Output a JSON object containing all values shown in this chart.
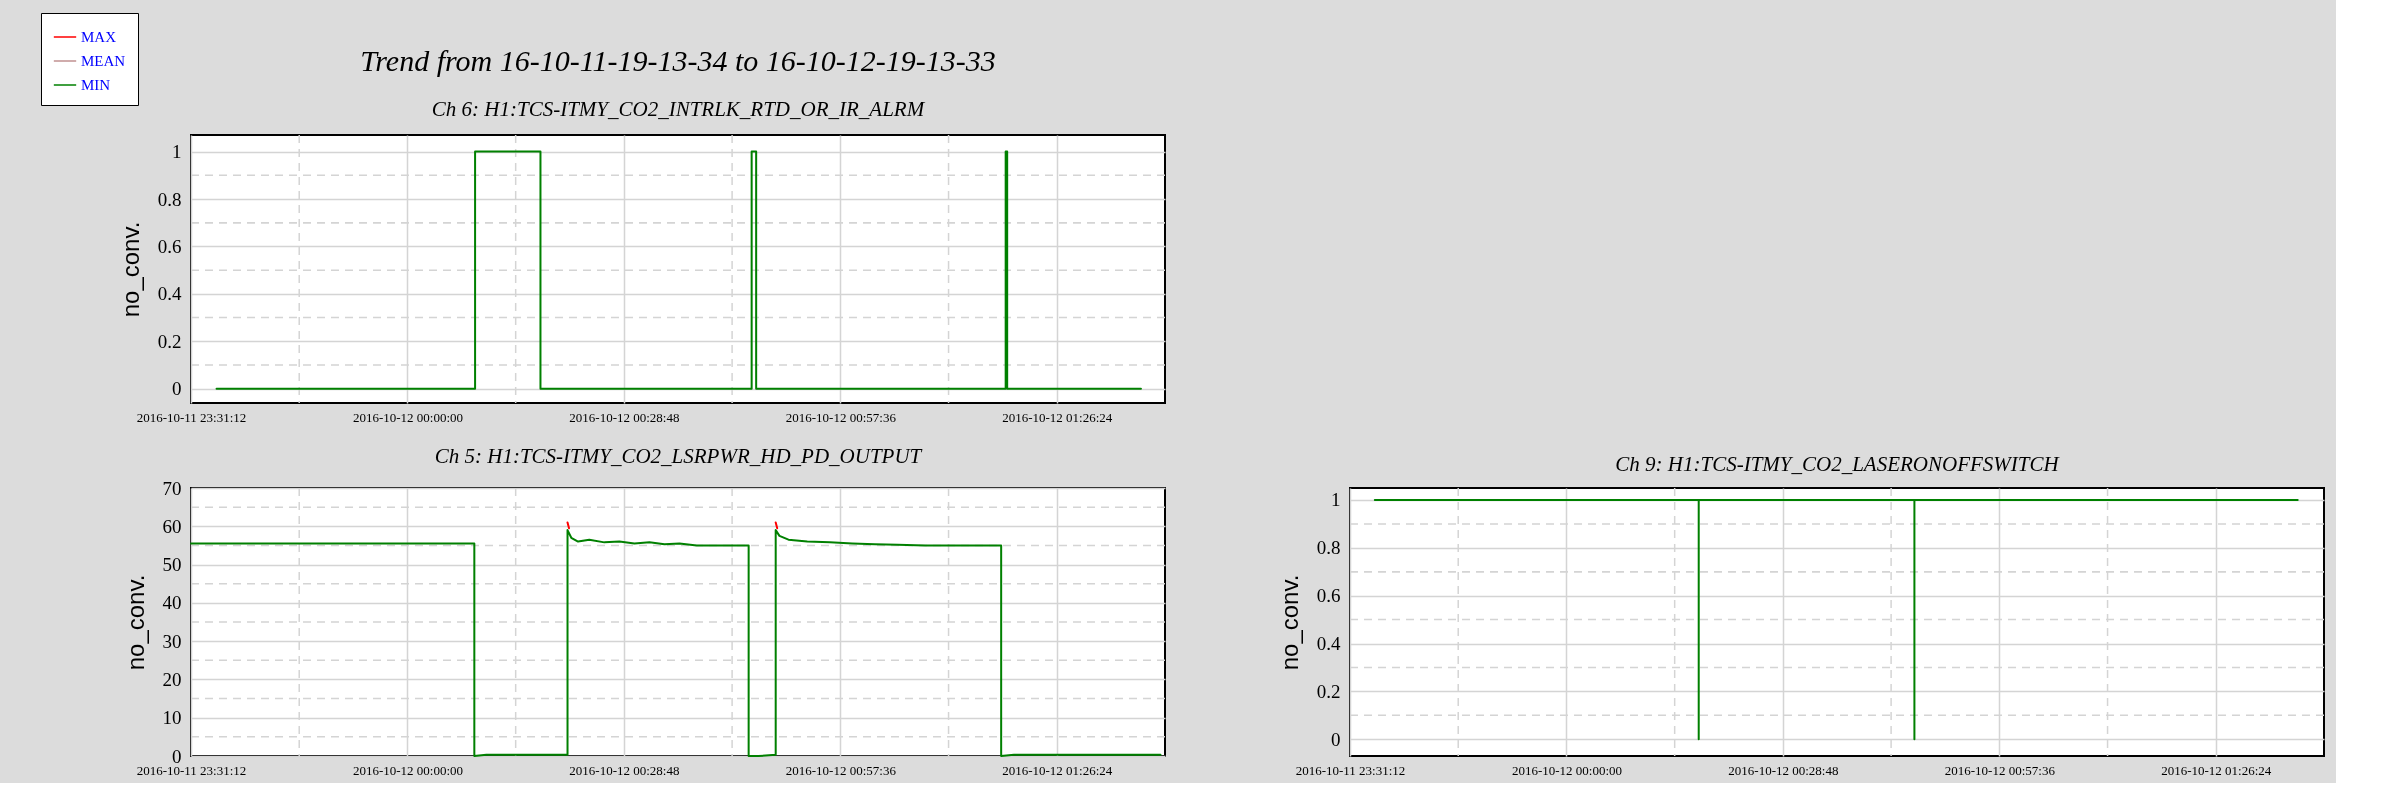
{
  "chart_data": [
    {
      "type": "line",
      "title": "Trend from 16-10-11-19-13-34 to 16-10-12-19-13-33",
      "subtitle": "Ch 6: H1:TCS-ITMY_CO2_INTRLK_RTD_OR_IR_ALRM",
      "ylabel": "no_conv.",
      "legend": "top left",
      "grid": true,
      "x": [
        "2016-10-11T23:34:36",
        "2016-10-12T00:09:00",
        "2016-10-12T00:09:00",
        "2016-10-12T00:17:42",
        "2016-10-12T00:17:42",
        "2016-10-12T00:45:48",
        "2016-10-12T00:45:48",
        "2016-10-12T00:46:24",
        "2016-10-12T00:46:24",
        "2016-10-12T01:19:36",
        "2016-10-12T01:19:36",
        "2016-10-12T01:19:48",
        "2016-10-12T01:19:48",
        "2016-10-12T01:37:36"
      ],
      "series": [
        {
          "name": "MAX",
          "color": "#ff0000",
          "values": [
            null,
            null,
            null,
            null,
            null,
            null,
            null,
            null,
            null,
            null,
            null,
            null,
            null,
            null
          ]
        },
        {
          "name": "MEAN",
          "color": "#c09090",
          "values": [
            null,
            null,
            null,
            null,
            null,
            null,
            null,
            null,
            null,
            null,
            null,
            null,
            null,
            null
          ]
        },
        {
          "name": "MIN",
          "color": "#008000",
          "values": [
            0,
            0,
            1,
            1,
            0,
            0,
            1,
            1,
            0,
            0,
            1,
            1,
            0,
            0
          ]
        }
      ],
      "xlim": [
        "2016-10-11T23:31:12",
        "2016-10-12T01:40:48"
      ],
      "xticks": [
        {
          "value": "2016-10-11T23:31:12",
          "label": "2016-10-11 23:31:12"
        },
        {
          "value": "2016-10-12T00:00:00",
          "label": "2016-10-12 00:00:00"
        },
        {
          "value": "2016-10-12T00:28:48",
          "label": "2016-10-12 00:28:48"
        },
        {
          "value": "2016-10-12T00:57:36",
          "label": "2016-10-12 00:57:36"
        },
        {
          "value": "2016-10-12T01:26:24",
          "label": "2016-10-12 01:26:24"
        }
      ],
      "ylim": [
        -0.06,
        1.07
      ],
      "yticks": [
        0,
        0.2,
        0.4,
        0.6,
        0.8,
        1
      ]
    },
    {
      "type": "line",
      "title": "Ch 5: H1:TCS-ITMY_CO2_LSRPWR_HD_PD_OUTPUT",
      "ylabel": "no_conv.",
      "grid": true,
      "x": [
        "2016-10-11T23:31:12",
        "2016-10-12T00:08:54",
        "2016-10-12T00:08:54",
        "2016-10-12T00:10:30",
        "2016-10-12T00:21:18",
        "2016-10-12T00:21:18",
        "2016-10-12T00:21:48",
        "2016-10-12T00:22:42",
        "2016-10-12T00:24:12",
        "2016-10-12T00:26:12",
        "2016-10-12T00:28:12",
        "2016-10-12T00:30:12",
        "2016-10-12T00:32:12",
        "2016-10-12T00:34:12",
        "2016-10-12T00:36:12",
        "2016-10-12T00:38:30",
        "2016-10-12T00:45:24",
        "2016-10-12T00:45:24",
        "2016-10-12T00:46:42",
        "2016-10-12T00:49:00",
        "2016-10-12T00:49:00",
        "2016-10-12T00:49:30",
        "2016-10-12T00:50:42",
        "2016-10-12T00:53:12",
        "2016-10-12T00:56:12",
        "2016-10-12T00:59:12",
        "2016-10-12T01:02:12",
        "2016-10-12T01:05:12",
        "2016-10-12T01:08:54",
        "2016-10-12T01:19:00",
        "2016-10-12T01:19:00",
        "2016-10-12T01:20:42",
        "2016-10-12T01:40:12"
      ],
      "series": [
        {
          "color": "#ff0000",
          "x": [
            "2016-10-12T00:21:18",
            "2016-10-12T00:21:30",
            "2016-10-12T00:35:00",
            "2016-10-12T00:49:00",
            "2016-10-12T00:49:12"
          ],
          "values": [
            61,
            59.5,
            null,
            61,
            59.5
          ]
        },
        {
          "color": "#008000",
          "values": [
            55.5,
            55.5,
            0,
            0.3,
            0.3,
            59,
            57,
            56,
            56.5,
            55.8,
            56,
            55.5,
            55.8,
            55.3,
            55.5,
            55,
            55,
            0,
            0,
            0.3,
            59,
            57.5,
            56.5,
            56,
            55.8,
            55.5,
            55.3,
            55.2,
            55,
            55,
            0,
            0.3,
            0.3
          ]
        }
      ],
      "xlim": [
        "2016-10-11T23:31:12",
        "2016-10-12T01:40:48"
      ],
      "xticks": [
        {
          "value": "2016-10-11T23:31:12",
          "label": "2016-10-11 23:31:12"
        },
        {
          "value": "2016-10-12T00:00:00",
          "label": "2016-10-12 00:00:00"
        },
        {
          "value": "2016-10-12T00:28:48",
          "label": "2016-10-12 00:28:48"
        },
        {
          "value": "2016-10-12T00:57:36",
          "label": "2016-10-12 00:57:36"
        },
        {
          "value": "2016-10-12T01:26:24",
          "label": "2016-10-12 01:26:24"
        }
      ],
      "ylim": [
        0,
        70
      ],
      "yticks": [
        0,
        10,
        20,
        30,
        40,
        50,
        60,
        70
      ]
    },
    {
      "type": "line",
      "title": "Ch 9: H1:TCS-ITMY_CO2_LASERONOFFSWITCH",
      "ylabel": "no_conv.",
      "grid": true,
      "x": [
        "2016-10-11T23:34:30",
        "2016-10-12T00:17:36",
        "2016-10-12T00:17:36",
        "2016-10-12T00:17:36",
        "2016-10-12T00:46:18",
        "2016-10-12T00:46:18",
        "2016-10-12T00:46:18",
        "2016-10-12T01:37:18"
      ],
      "series": [
        {
          "color": "#008000",
          "values": [
            1,
            1,
            0,
            1,
            1,
            0,
            1,
            1
          ]
        }
      ],
      "xlim": [
        "2016-10-11T23:31:12",
        "2016-10-12T01:40:48"
      ],
      "xticks": [
        {
          "value": "2016-10-11T23:31:12",
          "label": "2016-10-11 23:31:12"
        },
        {
          "value": "2016-10-12T00:00:00",
          "label": "2016-10-12 00:00:00"
        },
        {
          "value": "2016-10-12T00:28:48",
          "label": "2016-10-12 00:28:48"
        },
        {
          "value": "2016-10-12T00:57:36",
          "label": "2016-10-12 00:57:36"
        },
        {
          "value": "2016-10-12T01:26:24",
          "label": "2016-10-12 01:26:24"
        }
      ],
      "ylim": [
        -0.07,
        1.05
      ],
      "yticks": [
        0,
        0.2,
        0.4,
        0.6,
        0.8,
        1
      ]
    }
  ]
}
